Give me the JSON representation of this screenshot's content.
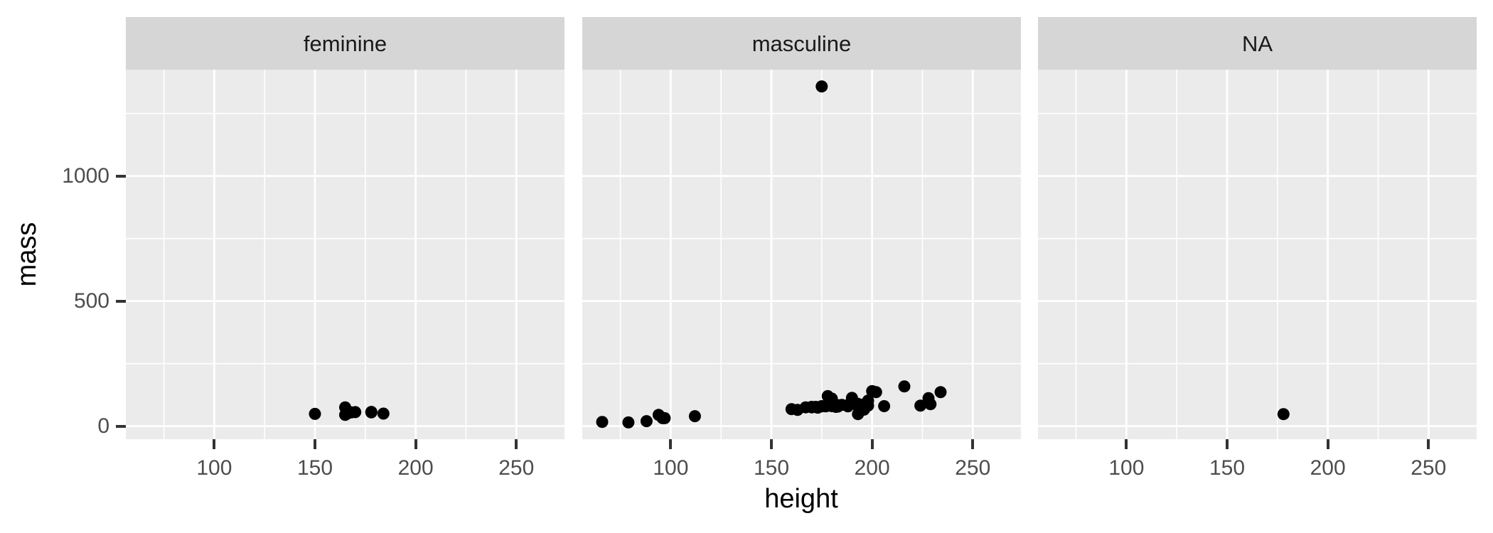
{
  "chart_data": {
    "type": "scatter",
    "title": "",
    "xlabel": "height",
    "ylabel": "mass",
    "legend": "none",
    "grid": "on",
    "facets": [
      {
        "label": "feminine",
        "points": [
          [
            150,
            49
          ],
          [
            165,
            75
          ],
          [
            165,
            45
          ],
          [
            166,
            50
          ],
          [
            168,
            55
          ],
          [
            170,
            56.2
          ],
          [
            178,
            55
          ],
          [
            178,
            57
          ],
          [
            184,
            50
          ]
        ]
      },
      {
        "label": "masculine",
        "points": [
          [
            172,
            77
          ],
          [
            167,
            75
          ],
          [
            96,
            32
          ],
          [
            202,
            136
          ],
          [
            178,
            120
          ],
          [
            97,
            32
          ],
          [
            183,
            84
          ],
          [
            182,
            77
          ],
          [
            188,
            84
          ],
          [
            228,
            112
          ],
          [
            180,
            80
          ],
          [
            173,
            74
          ],
          [
            175,
            1358
          ],
          [
            170,
            77
          ],
          [
            180,
            110
          ],
          [
            66,
            17
          ],
          [
            170,
            75
          ],
          [
            183,
            78.2
          ],
          [
            200,
            140
          ],
          [
            190,
            113
          ],
          [
            177,
            79
          ],
          [
            175,
            79
          ],
          [
            180,
            83
          ],
          [
            88,
            20
          ],
          [
            160,
            68
          ],
          [
            193,
            89
          ],
          [
            191,
            90
          ],
          [
            196,
            66
          ],
          [
            224,
            82
          ],
          [
            112,
            40
          ],
          [
            175,
            80
          ],
          [
            94,
            45
          ],
          [
            163,
            65
          ],
          [
            188,
            84
          ],
          [
            198,
            82
          ],
          [
            196,
            87
          ],
          [
            188,
            80
          ],
          [
            185,
            85
          ],
          [
            183,
            80
          ],
          [
            193,
            80
          ],
          [
            183,
            79
          ],
          [
            198,
            102
          ],
          [
            229,
            88
          ],
          [
            79,
            15
          ],
          [
            193,
            48
          ],
          [
            216,
            159
          ],
          [
            234,
            136
          ],
          [
            188,
            79
          ],
          [
            206,
            80
          ]
        ]
      },
      {
        "label": "NA",
        "points": [
          [
            178,
            48
          ]
        ]
      }
    ],
    "x_axis": {
      "ticks": [
        100,
        150,
        200,
        250
      ],
      "minor_ticks": [
        75,
        125,
        175,
        225
      ],
      "domain": [
        56.1,
        273.9
      ]
    },
    "y_axis": {
      "ticks": [
        0,
        500,
        1000
      ],
      "minor_ticks": [
        250,
        750,
        1250
      ],
      "domain": [
        -52.15,
        1425.15
      ]
    },
    "style": {
      "panel_bg": "#ebebeb",
      "strip_bg": "#d6d6d6",
      "grid_color": "#ffffff",
      "point_color": "#000000",
      "tick_label_color": "#4d4d4d",
      "tick_mark_color": "#333333",
      "title_color": "#000000"
    }
  }
}
